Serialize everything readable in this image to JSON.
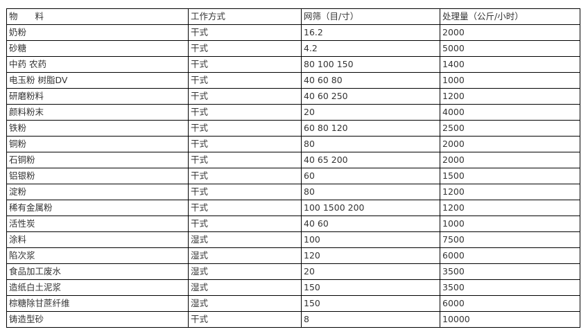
{
  "table": {
    "headers": [
      "物　　料",
      "工作方式",
      "网筛（目/寸）",
      "处理量（公斤/小时）"
    ],
    "rows": [
      [
        "奶粉",
        "干式",
        "16.2",
        "2000"
      ],
      [
        "砂糖",
        "干式",
        "4.2",
        "5000"
      ],
      [
        "中药 农药",
        "干式",
        "80 100 150",
        "1400"
      ],
      [
        "电玉粉 树脂DV",
        "干式",
        "40 60 80",
        "1000"
      ],
      [
        "研磨粉料",
        "干式",
        "40 60 250",
        "1200"
      ],
      [
        "颜料粉末",
        "干式",
        "20",
        "4000"
      ],
      [
        "铁粉",
        "干式",
        "60 80 120",
        "2500"
      ],
      [
        "铜粉",
        "干式",
        "80",
        "2000"
      ],
      [
        "石铜粉",
        "干式",
        "40 65 200",
        "2000"
      ],
      [
        "铝银粉",
        "干式",
        "60",
        "1500"
      ],
      [
        "淀粉",
        "干式",
        "80",
        "1200"
      ],
      [
        "稀有金属粉",
        "干式",
        "100 1500 200",
        "1200"
      ],
      [
        "活性炭",
        "干式",
        "40 60",
        "1000"
      ],
      [
        "涂料",
        "湿式",
        "100",
        "7500"
      ],
      [
        "陷次浆",
        "湿式",
        "120",
        "6000"
      ],
      [
        "食品加工废水",
        "湿式",
        "20",
        "3500"
      ],
      [
        "造纸白土泥浆",
        "湿式",
        "150",
        "3500"
      ],
      [
        "棕糖除甘蔗纤维",
        "湿式",
        "150",
        "6000"
      ],
      [
        "铸造型砂",
        "干式",
        "8",
        "10000"
      ]
    ]
  }
}
